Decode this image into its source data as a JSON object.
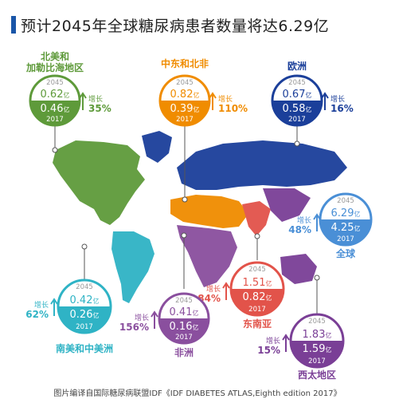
{
  "title": "预计2045年全球糖尿病患者数量将达6.29亿",
  "footer": "图片编译自国际糖尿病联盟IDF《IDF DIABETES ATLAS,Eighth edition 2017》",
  "unit": "亿",
  "growth_label": "增长",
  "colors": {
    "na": "#5e9a3a",
    "mena": "#f08c00",
    "eu": "#1b3f9a",
    "glob": "#4a8fd6",
    "sea": "#e2534a",
    "afr": "#8a4f9e",
    "sacam": "#2fb3c5",
    "wp": "#7a3f96"
  },
  "chart_data": {
    "type": "bubble-map",
    "title": "预计2045年全球糖尿病患者数量将达6.29亿",
    "years": [
      "2045",
      "2017"
    ],
    "unit": "亿",
    "regions": [
      {
        "id": "na",
        "name": "北美和加勒比海地区",
        "name_lines": [
          "北美和",
          "加勒比海地区"
        ],
        "v2045": "0.62",
        "v2017": "0.46",
        "growth": "35%"
      },
      {
        "id": "mena",
        "name": "中东和北非",
        "name_lines": [
          "中东和北非"
        ],
        "v2045": "0.82",
        "v2017": "0.39",
        "growth": "110%"
      },
      {
        "id": "eu",
        "name": "欧洲",
        "name_lines": [
          "欧洲"
        ],
        "v2045": "0.67",
        "v2017": "0.58",
        "growth": "16%"
      },
      {
        "id": "glob",
        "name": "全球",
        "name_lines": [
          "全球"
        ],
        "v2045": "6.29",
        "v2017": "4.25",
        "growth": "48%"
      },
      {
        "id": "sea",
        "name": "东南亚",
        "name_lines": [
          "东南亚"
        ],
        "v2045": "1.51",
        "v2017": "0.82",
        "growth": "84%"
      },
      {
        "id": "afr",
        "name": "非洲",
        "name_lines": [
          "非洲"
        ],
        "v2045": "0.41",
        "v2017": "0.16",
        "growth": "156%"
      },
      {
        "id": "sacam",
        "name": "南美和中美洲",
        "name_lines": [
          "南美和中美洲"
        ],
        "v2045": "0.42",
        "v2017": "0.26",
        "growth": "62%"
      },
      {
        "id": "wp",
        "name": "西太地区",
        "name_lines": [
          "西太地区"
        ],
        "v2045": "1.83",
        "v2017": "1.59",
        "growth": "15%"
      }
    ]
  }
}
